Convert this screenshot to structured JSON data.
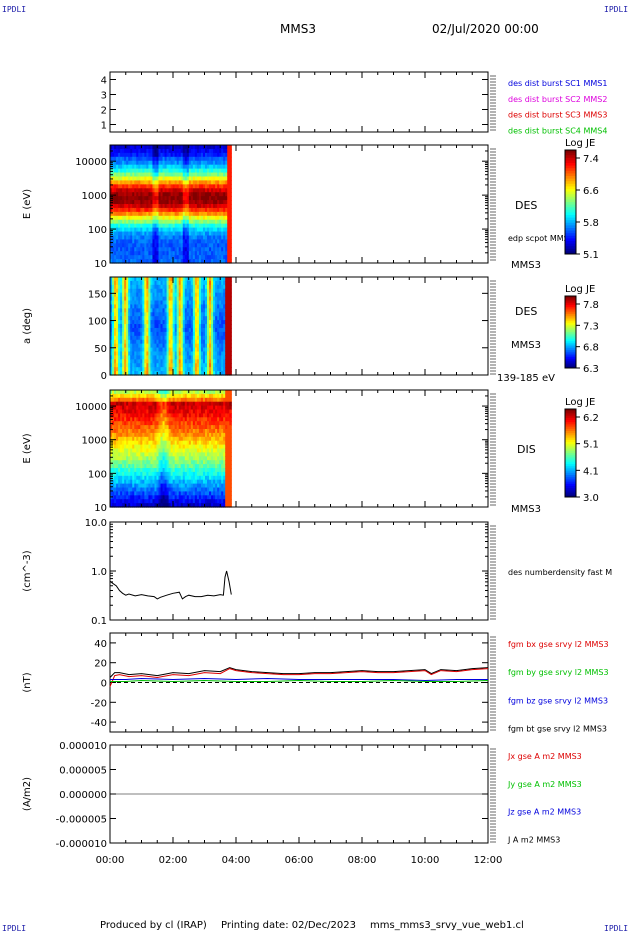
{
  "header": {
    "corner_label": "IPDLI",
    "spacecraft": "MMS3",
    "date": "02/Jul/2020 00:00"
  },
  "footer": {
    "produced_by": "Produced by cl (IRAP)",
    "printing_date": "Printing date: 02/Dec/2023",
    "filename": "mms_mms3_srvy_vue_web1.cl"
  },
  "colors": {
    "blue": "#0000dd",
    "magenta": "#dd00dd",
    "red": "#dd0000",
    "green": "#00c000",
    "black": "#000000"
  },
  "chart_data": [
    {
      "type": "line",
      "name": "burst-availability",
      "ylim": [
        0.5,
        4.5
      ],
      "yticks": [
        1,
        2,
        3,
        4
      ],
      "yticklabels": [
        "1",
        "2",
        "3",
        "4"
      ],
      "ylabel": "",
      "legend": [
        {
          "label": "des dist burst SC1 MMS1",
          "color": "#0000dd"
        },
        {
          "label": "des dist burst SC2 MMS2",
          "color": "#dd00dd"
        },
        {
          "label": "des dist burst SC3 MMS3",
          "color": "#dd0000"
        },
        {
          "label": "des dist burst SC4 MMS4",
          "color": "#00c000"
        }
      ]
    },
    {
      "type": "heatmap",
      "name": "des-energy-spectrogram",
      "ylabel": "E (eV)",
      "yscale": "log",
      "ylim": [
        10,
        30000
      ],
      "yticks": [
        10,
        100,
        1000,
        10000
      ],
      "yticklabels": [
        "10",
        "100",
        "1000",
        "10000"
      ],
      "data_end_hour": 3.85,
      "labels": [
        "DES",
        "edp scpot MMS3",
        "MMS3"
      ],
      "colorbar": {
        "title": "Log JE",
        "ticks": [
          "7.4",
          "6.6",
          "5.8",
          "5.1"
        ]
      }
    },
    {
      "type": "heatmap",
      "name": "des-pitch-angle",
      "ylabel": "a (deg)",
      "ylim": [
        0,
        180
      ],
      "yticks": [
        0,
        50,
        100,
        150
      ],
      "yticklabels": [
        "0",
        "50",
        "100",
        "150"
      ],
      "data_end_hour": 3.85,
      "labels": [
        "DES",
        "MMS3",
        "139-185 eV"
      ],
      "colorbar": {
        "title": "Log JE",
        "ticks": [
          "7.8",
          "7.3",
          "6.8",
          "6.3"
        ]
      }
    },
    {
      "type": "heatmap",
      "name": "dis-energy-spectrogram",
      "ylabel": "E (eV)",
      "yscale": "log",
      "ylim": [
        10,
        30000
      ],
      "yticks": [
        10,
        100,
        1000,
        10000
      ],
      "yticklabels": [
        "10",
        "100",
        "1000",
        "10000"
      ],
      "data_end_hour": 3.85,
      "labels": [
        "DIS",
        "MMS3"
      ],
      "colorbar": {
        "title": "Log JE",
        "ticks": [
          "6.2",
          "5.1",
          "4.1",
          "3.0"
        ]
      }
    },
    {
      "type": "line",
      "name": "number-density",
      "ylabel": "(cm^-3)",
      "yscale": "log",
      "ylim": [
        0.1,
        10
      ],
      "yticks": [
        0.1,
        1,
        10
      ],
      "yticklabels": [
        "0.1",
        "1.0",
        "10.0"
      ],
      "legend": [
        {
          "label": "des numberdensity fast M",
          "color": "#000000"
        }
      ],
      "series": [
        {
          "x": [
            0,
            0.1,
            0.2,
            0.3,
            0.4,
            0.5,
            0.6,
            0.8,
            1.0,
            1.2,
            1.4,
            1.5,
            1.6,
            1.8,
            2.0,
            2.2,
            2.3,
            2.4,
            2.5,
            2.7,
            2.9,
            3.1,
            3.3,
            3.5,
            3.6,
            3.65,
            3.7,
            3.78,
            3.85
          ],
          "y": [
            0.62,
            0.55,
            0.5,
            0.4,
            0.35,
            0.32,
            0.34,
            0.31,
            0.33,
            0.31,
            0.3,
            0.27,
            0.29,
            0.32,
            0.35,
            0.37,
            0.27,
            0.3,
            0.32,
            0.3,
            0.3,
            0.32,
            0.31,
            0.33,
            0.32,
            0.75,
            1.0,
            0.6,
            0.33
          ]
        }
      ]
    },
    {
      "type": "line",
      "name": "magnetic-field",
      "ylabel": "(nT)",
      "ylim": [
        -50,
        50
      ],
      "yticks": [
        -40,
        -20,
        0,
        20,
        40
      ],
      "yticklabels": [
        "-40",
        "-20",
        "0",
        "20",
        "40"
      ],
      "legend": [
        {
          "label": "fgm bx gse srvy l2 MMS3",
          "color": "#dd0000"
        },
        {
          "label": "fgm by gse srvy l2 MMS3",
          "color": "#00c000"
        },
        {
          "label": "fgm bz gse srvy l2 MMS3",
          "color": "#0000dd"
        },
        {
          "label": "fgm bt gse srvy l2 MMS3",
          "color": "#000000"
        }
      ],
      "series": [
        {
          "name": "bt",
          "color": "#000000",
          "x": [
            0,
            0.15,
            0.3,
            0.6,
            1,
            1.5,
            2,
            2.5,
            3,
            3.5,
            3.8,
            4,
            4.5,
            5,
            5.5,
            6,
            6.5,
            7,
            7.5,
            8,
            8.5,
            9,
            9.5,
            10,
            10.2,
            10.5,
            11,
            11.5,
            12
          ],
          "y": [
            5,
            10,
            10,
            8,
            9,
            7,
            10,
            9,
            12,
            11,
            15,
            13,
            11,
            10,
            9,
            9,
            10,
            10,
            11,
            12,
            11,
            11,
            12,
            13,
            9,
            13,
            12,
            14,
            15
          ]
        },
        {
          "name": "bx",
          "color": "#dd0000",
          "x": [
            0,
            0.15,
            0.3,
            0.6,
            1,
            1.5,
            2,
            2.5,
            3,
            3.5,
            3.8,
            4,
            4.5,
            5,
            5.5,
            6,
            6.5,
            7,
            7.5,
            8,
            8.5,
            9,
            9.5,
            10,
            10.2,
            10.5,
            11,
            11.5,
            12
          ],
          "y": [
            -4,
            7,
            8,
            6,
            7,
            5,
            8,
            7,
            10,
            9,
            14,
            12,
            10,
            9,
            8,
            8,
            9,
            9,
            10,
            11,
            10,
            10,
            11,
            12,
            8,
            12,
            11,
            13,
            14
          ]
        },
        {
          "name": "bz",
          "color": "#0000dd",
          "x": [
            0,
            0.5,
            1,
            2,
            3,
            4,
            5,
            6,
            7,
            8,
            9,
            10,
            11,
            12
          ],
          "y": [
            3,
            3,
            4,
            3,
            4,
            3,
            4,
            3,
            3,
            3,
            3,
            2,
            3,
            3
          ]
        },
        {
          "name": "by",
          "color": "#00c000",
          "x": [
            0,
            0.5,
            1,
            2,
            3,
            4,
            5,
            6,
            7,
            8,
            9,
            10,
            11,
            12
          ],
          "y": [
            1,
            1,
            2,
            1,
            2,
            1,
            1,
            2,
            1,
            1,
            2,
            1,
            1,
            2
          ]
        }
      ]
    },
    {
      "type": "line",
      "name": "current-density",
      "ylabel": "(A/m2)",
      "ylim": [
        -1e-05,
        1e-05
      ],
      "yticks": [
        -1e-05,
        -5e-06,
        0,
        5e-06,
        1e-05
      ],
      "yticklabels": [
        "-0.000010",
        "-0.000005",
        "0.000000",
        "0.000005",
        "0.000010"
      ],
      "legend": [
        {
          "label": "Jx gse A m2 MMS3",
          "color": "#dd0000"
        },
        {
          "label": "Jy gse A m2 MMS3",
          "color": "#00c000"
        },
        {
          "label": "Jz gse A m2 MMS3",
          "color": "#0000dd"
        },
        {
          "label": "J A m2 MMS3",
          "color": "#000000"
        }
      ]
    }
  ],
  "time_axis": {
    "xlim": [
      0,
      12
    ],
    "ticks": [
      0,
      2,
      4,
      6,
      8,
      10,
      12
    ],
    "ticklabels": [
      "00:00",
      "02:00",
      "04:00",
      "06:00",
      "08:00",
      "10:00",
      "12:00"
    ]
  }
}
